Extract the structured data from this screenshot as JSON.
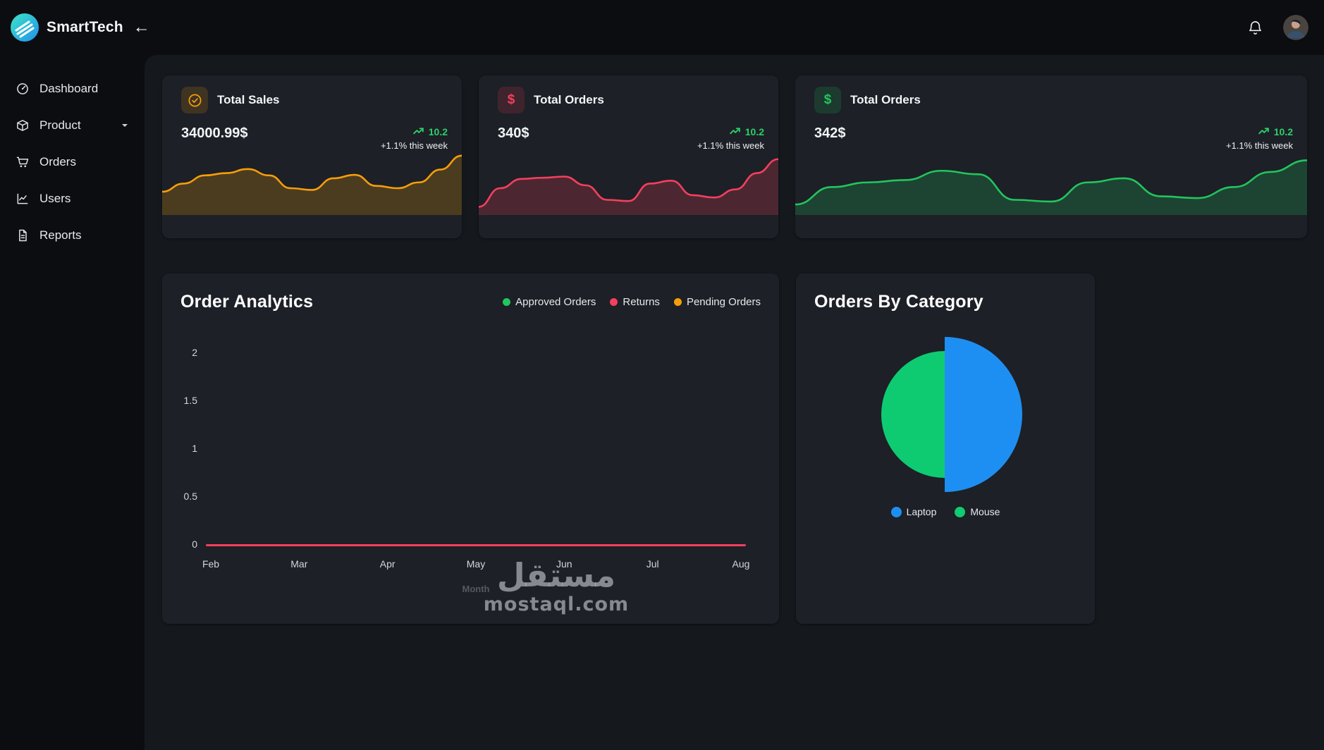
{
  "header": {
    "brand": "SmartTech",
    "back_arrow": "←"
  },
  "sidebar": {
    "items": [
      {
        "label": "Dashboard",
        "icon": "dashboard"
      },
      {
        "label": "Product",
        "icon": "product",
        "has_submenu": true
      },
      {
        "label": "Orders",
        "icon": "orders"
      },
      {
        "label": "Users",
        "icon": "users"
      },
      {
        "label": "Reports",
        "icon": "reports"
      }
    ]
  },
  "stat_cards": [
    {
      "title": "Total Sales",
      "value": "34000.99$",
      "trend_value": "10.2",
      "trend_note": "+1.1% this week",
      "accent": "#f59e0b",
      "icon": "check-circle",
      "spark": [
        34,
        48,
        62,
        66,
        73,
        62,
        40,
        37,
        57,
        63,
        44,
        40,
        50,
        72,
        96
      ]
    },
    {
      "title": "Total Orders",
      "value": "340$",
      "trend_value": "10.2",
      "trend_note": "+1.1% this week",
      "accent": "#f43f5e",
      "icon": "dollar",
      "spark": [
        8,
        40,
        56,
        58,
        60,
        45,
        20,
        18,
        48,
        53,
        28,
        24,
        38,
        66,
        90
      ]
    },
    {
      "title": "Total Orders",
      "value": "342$",
      "trend_value": "10.2",
      "trend_note": "+1.1% this week",
      "accent": "#22c55e",
      "icon": "dollar",
      "spark": [
        12,
        42,
        50,
        54,
        70,
        64,
        20,
        17,
        50,
        57,
        26,
        23,
        42,
        68,
        88
      ]
    }
  ],
  "chart_data": [
    {
      "type": "line",
      "title": "Order Analytics",
      "x": [
        "Feb",
        "Mar",
        "Apr",
        "May",
        "Jun",
        "Jul",
        "Aug"
      ],
      "series": [
        {
          "name": "Approved Orders",
          "color": "#22c55e",
          "values": [
            0,
            0,
            0,
            0,
            0,
            0,
            0
          ]
        },
        {
          "name": "Returns",
          "color": "#f43f5e",
          "values": [
            0,
            0,
            0,
            0,
            0,
            0,
            0
          ]
        },
        {
          "name": "Pending Orders",
          "color": "#f59e0b",
          "values": [
            0,
            0,
            0,
            0,
            0,
            0,
            0
          ]
        }
      ],
      "xlabel": "Month",
      "ylabel": "",
      "ylim": [
        0,
        2
      ],
      "yticks": [
        0,
        0.5,
        1,
        1.5,
        2
      ],
      "grid": false,
      "legend_position": "top-right"
    },
    {
      "type": "pie",
      "title": "Orders By Category",
      "slices": [
        {
          "label": "Laptop",
          "color": "#1e8ff2",
          "angle_deg": 180,
          "radius": 110
        },
        {
          "label": "Mouse",
          "color": "#0ecb72",
          "angle_deg": 180,
          "radius": 90
        }
      ],
      "legend_position": "bottom"
    }
  ],
  "watermark": {
    "line1": "مستقل",
    "line2": "mostaql.com"
  }
}
